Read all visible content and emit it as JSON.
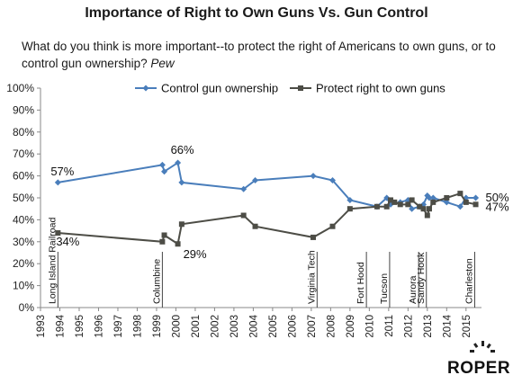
{
  "header": {
    "title": "Importance of Right to Own Guns Vs. Gun Control",
    "question": "What do you think is more important--to protect the right of Americans to own guns, or to control gun ownership?",
    "source": "Pew"
  },
  "logo": {
    "text": "ROPER"
  },
  "colors": {
    "control": "#4a7ebb",
    "protect": "#4d4d46",
    "axis": "#888888",
    "grid": "#d9d9d9"
  },
  "chart_data": {
    "type": "line",
    "title": "",
    "xlabel": "",
    "ylabel": "",
    "xlim": [
      1993,
      2015.8
    ],
    "ylim": [
      0,
      100
    ],
    "x_ticks": [
      "1993",
      "1994",
      "1995",
      "1996",
      "1997",
      "1998",
      "1999",
      "2000",
      "2001",
      "2002",
      "2003",
      "2004",
      "2005",
      "2006",
      "2007",
      "2008",
      "2009",
      "2010",
      "2011",
      "2012",
      "2013",
      "2014",
      "2015"
    ],
    "y_ticks": [
      "0%",
      "10%",
      "20%",
      "30%",
      "40%",
      "50%",
      "60%",
      "70%",
      "80%",
      "90%",
      "100%"
    ],
    "grid": false,
    "legend": "top",
    "series": [
      {
        "name": "Control gun ownership",
        "marker": "diamond",
        "x": [
          1993.9,
          1999.3,
          1999.4,
          2000.1,
          2000.3,
          2003.5,
          2004.1,
          2007.1,
          2008.1,
          2009.0,
          2010.4,
          2010.9,
          2011.1,
          2011.6,
          2012.0,
          2012.2,
          2012.6,
          2012.8,
          2013.0,
          2013.1,
          2013.3,
          2014.0,
          2014.7,
          2015.0,
          2015.5
        ],
        "values": [
          57,
          65,
          62,
          66,
          57,
          54,
          58,
          60,
          58,
          49,
          46,
          50,
          47,
          48,
          49,
          45,
          46,
          47,
          51,
          50,
          50,
          48,
          46,
          50,
          50
        ]
      },
      {
        "name": "Protect right to own guns",
        "marker": "square",
        "x": [
          1993.9,
          1999.3,
          1999.4,
          2000.1,
          2000.3,
          2003.5,
          2004.1,
          2007.1,
          2008.1,
          2009.0,
          2010.4,
          2010.9,
          2011.1,
          2011.3,
          2011.6,
          2012.0,
          2012.2,
          2012.6,
          2012.8,
          2013.0,
          2013.1,
          2013.3,
          2014.0,
          2014.7,
          2015.0,
          2015.5
        ],
        "values": [
          34,
          30,
          33,
          29,
          38,
          42,
          37,
          32,
          37,
          45,
          46,
          46,
          49,
          48,
          47,
          47,
          49,
          46,
          45,
          42,
          45,
          48,
          50,
          52,
          48,
          47
        ]
      }
    ],
    "annotations": [
      {
        "text": "57%",
        "series": 0,
        "point": 0
      },
      {
        "text": "66%",
        "series": 0,
        "point": 3
      },
      {
        "text": "34%",
        "series": 1,
        "point": 0
      },
      {
        "text": "29%",
        "series": 1,
        "point": 3
      },
      {
        "text": "50%",
        "series": 0,
        "point": 24
      },
      {
        "text": "47%",
        "series": 1,
        "point": 25
      }
    ],
    "events": [
      {
        "text": "Long Island Railroad",
        "x": 1993.9
      },
      {
        "text": "Columbine",
        "x": 1999.3
      },
      {
        "text": "Virginia Tech",
        "x": 2007.3
      },
      {
        "text": "Fort Hood",
        "x": 2009.85
      },
      {
        "text": "Tucson",
        "x": 2011.05
      },
      {
        "text": "Aurora",
        "x": 2012.55
      },
      {
        "text": "Sandy Hook",
        "x": 2012.95
      },
      {
        "text": "Charleston",
        "x": 2015.45
      }
    ]
  }
}
